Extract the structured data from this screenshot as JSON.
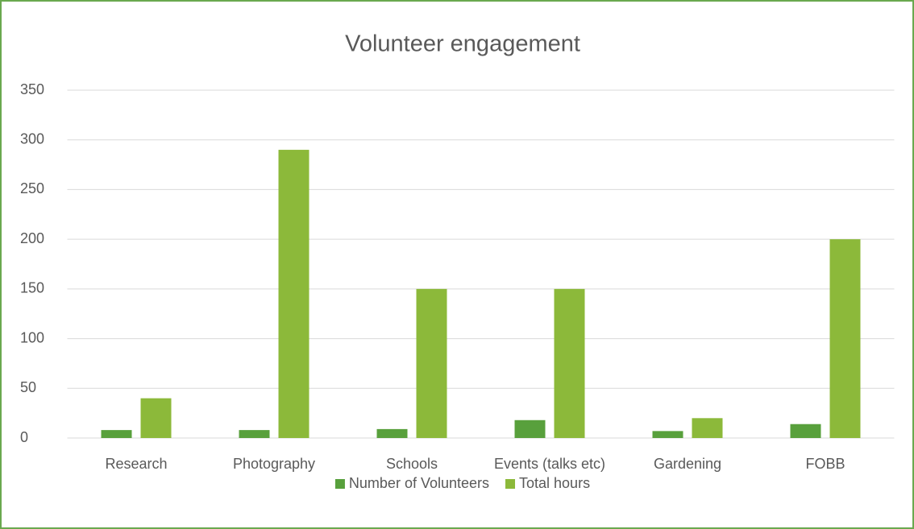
{
  "chart_data": {
    "type": "bar",
    "title": "Volunteer engagement",
    "categories": [
      "Research",
      "Photography",
      "Schools",
      "Events (talks etc)",
      "Gardening",
      "FOBB"
    ],
    "series": [
      {
        "name": "Number of Volunteers",
        "color": "#58a03c",
        "values": [
          8,
          8,
          9,
          18,
          7,
          14
        ]
      },
      {
        "name": "Total hours",
        "color": "#8cb93a",
        "values": [
          40,
          290,
          150,
          150,
          20,
          200
        ]
      }
    ],
    "ylim": [
      0,
      350
    ],
    "yticks": [
      0,
      50,
      100,
      150,
      200,
      250,
      300,
      350
    ],
    "grid": true,
    "legend": "bottom"
  }
}
